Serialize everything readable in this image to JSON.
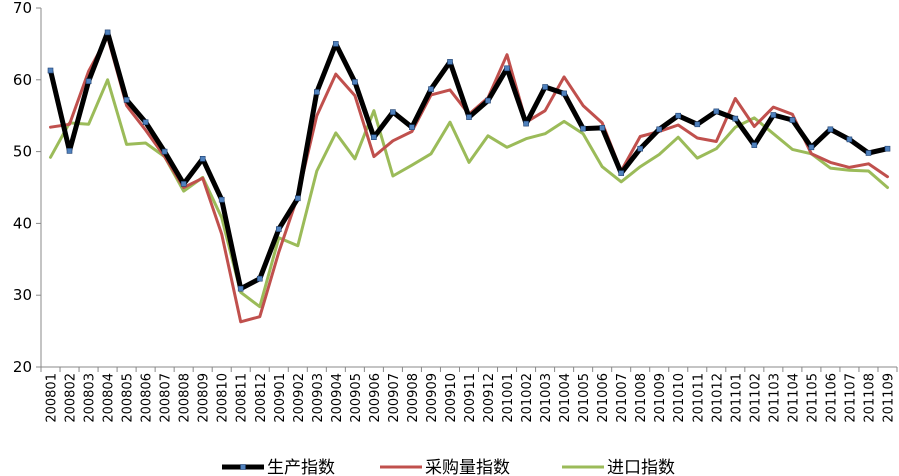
{
  "chart_data": {
    "type": "line",
    "title": "",
    "xlabel": "",
    "ylabel": "",
    "ylim": [
      20,
      70
    ],
    "yticks": [
      20,
      30,
      40,
      50,
      60,
      70
    ],
    "grid": false,
    "legend_position": "bottom",
    "categories": [
      "200801",
      "200802",
      "200803",
      "200804",
      "200805",
      "200806",
      "200807",
      "200808",
      "200809",
      "200810",
      "200811",
      "200812",
      "200901",
      "200902",
      "200903",
      "200904",
      "200905",
      "200906",
      "200907",
      "200908",
      "200909",
      "200910",
      "200911",
      "200912",
      "201001",
      "201002",
      "201003",
      "201004",
      "201005",
      "201006",
      "201007",
      "201008",
      "201009",
      "201010",
      "201011",
      "201012",
      "201101",
      "201102",
      "201103",
      "201104",
      "201105",
      "201106",
      "201107",
      "201108",
      "201109"
    ],
    "series": [
      {
        "name": "生产指数",
        "color": "#000000",
        "marker_color": "#4f81bd",
        "values": [
          61.3,
          50.1,
          59.8,
          66.6,
          57.2,
          54.1,
          50.0,
          45.5,
          49.0,
          43.3,
          30.9,
          32.3,
          39.2,
          43.5,
          58.3,
          65.0,
          59.7,
          52.0,
          55.5,
          53.4,
          58.7,
          62.5,
          54.8,
          57.1,
          61.6,
          53.9,
          59.0,
          58.1,
          53.2,
          53.3,
          47.0,
          50.4,
          53.1,
          55.0,
          53.8,
          55.6,
          54.6,
          50.9,
          55.1,
          54.4,
          50.6,
          53.1,
          51.7,
          49.8,
          50.4
        ]
      },
      {
        "name": "采购量指数",
        "color": "#c0504d",
        "values": [
          53.4,
          53.8,
          61.2,
          66.0,
          56.4,
          53.0,
          49.3,
          45.0,
          46.3,
          38.5,
          26.3,
          27.0,
          36.0,
          43.8,
          55.0,
          60.8,
          57.8,
          49.3,
          51.5,
          52.8,
          57.9,
          58.6,
          55.2,
          57.5,
          63.5,
          54.1,
          55.7,
          60.4,
          56.4,
          54.0,
          47.3,
          52.1,
          52.8,
          53.7,
          51.9,
          51.4,
          57.4,
          53.5,
          56.2,
          55.2,
          49.7,
          48.5,
          47.8,
          48.3,
          46.5
        ]
      },
      {
        "name": "进口指数",
        "color": "#9bbb59",
        "values": [
          49.2,
          54.0,
          53.8,
          60.0,
          51.0,
          51.2,
          49.3,
          44.5,
          46.4,
          40.8,
          30.4,
          28.4,
          38.0,
          36.9,
          47.3,
          52.6,
          49.0,
          55.7,
          46.6,
          48.1,
          49.7,
          54.1,
          48.5,
          52.2,
          50.6,
          51.8,
          52.5,
          54.2,
          52.5,
          47.9,
          45.8,
          47.9,
          49.6,
          52.0,
          49.1,
          50.4,
          53.4,
          54.7,
          52.5,
          50.3,
          49.7,
          47.7,
          47.4,
          47.3,
          45.0
        ]
      }
    ]
  }
}
